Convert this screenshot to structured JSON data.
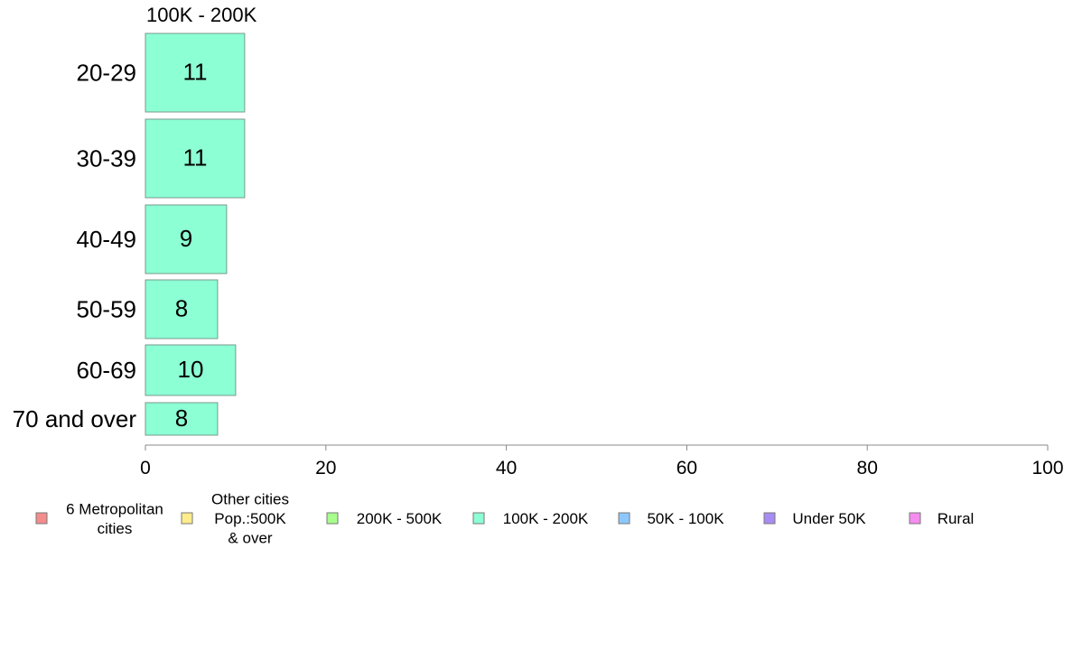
{
  "chart_data": {
    "type": "bar",
    "orientation": "horizontal",
    "title": "100K - 200K",
    "categories": [
      "20-29",
      "30-39",
      "40-49",
      "50-59",
      "60-69",
      "70 and over"
    ],
    "values": [
      11,
      11,
      9,
      8,
      10,
      8
    ],
    "bar_labels": [
      "11",
      "11",
      "9",
      "8",
      "10",
      "8"
    ],
    "xlim": [
      0,
      100
    ],
    "xticks": [
      0,
      20,
      40,
      60,
      80,
      100
    ],
    "xtick_labels": [
      "0",
      "20",
      "40",
      "60",
      "80",
      "100"
    ],
    "grid": false,
    "bar_color": "#8cffd4",
    "legend_position": "bottom",
    "legend": [
      {
        "lines": [
          "6 Metropolitan",
          " cities"
        ],
        "color": "#f58c8c"
      },
      {
        "lines": [
          "Other cities",
          "Pop.:500K",
          " & over"
        ],
        "color": "#ffec8c"
      },
      {
        "lines": [
          "200K - 500K"
        ],
        "color": "#a8ff8c"
      },
      {
        "lines": [
          "100K - 200K"
        ],
        "color": "#8cffd4"
      },
      {
        "lines": [
          "50K - 100K"
        ],
        "color": "#8cc8ff"
      },
      {
        "lines": [
          "Under 50K"
        ],
        "color": "#a88cf5"
      },
      {
        "lines": [
          "Rural"
        ],
        "color": "#f58cf0"
      }
    ]
  }
}
